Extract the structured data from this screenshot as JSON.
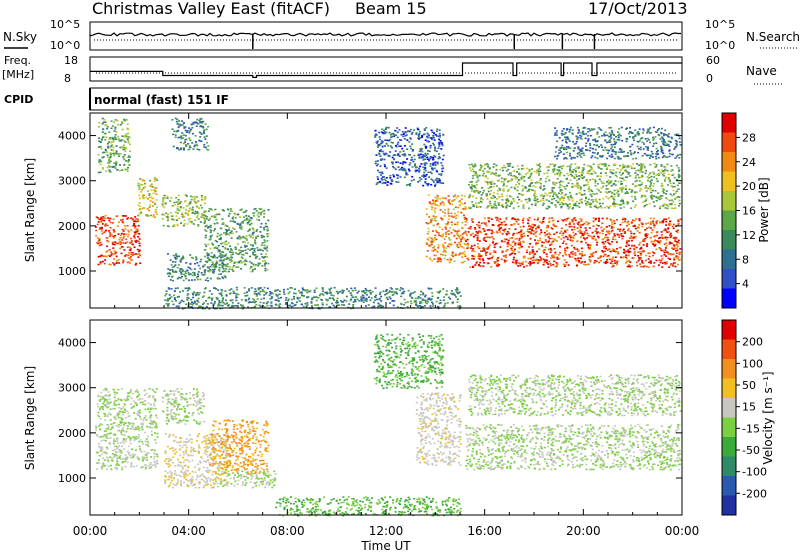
{
  "header": {
    "station": "Christmas Valley East (fitACF)",
    "beam": "Beam 15",
    "date": "17/Oct/2013"
  },
  "nsky": {
    "left_label": "N.Sky",
    "left_ticks": [
      "10^5",
      "10^0"
    ],
    "right_ticks": [
      "10^5",
      "10^0"
    ],
    "right_label": "N.Search"
  },
  "freq": {
    "left_label_1": "Freq.",
    "left_label_2": "[MHz]",
    "left_ticks": [
      "18",
      "8"
    ],
    "right_ticks": [
      "60",
      "0"
    ],
    "right_label": "Nave"
  },
  "cpid": {
    "label": "CPID",
    "mode": "normal (fast) 151 IF"
  },
  "power_panel": {
    "ylabel": "Slant Range [km]",
    "yticks": [
      "4000",
      "3000",
      "2000",
      "1000"
    ],
    "colorbar_label": "Power [dB]",
    "colorbar_ticks": [
      "28",
      "24",
      "20",
      "16",
      "12",
      "8",
      "4"
    ],
    "colors": [
      "#0000ff",
      "#3050c8",
      "#2f6f8f",
      "#3a8a5a",
      "#5aa84a",
      "#a8c83a",
      "#f0c020",
      "#f08a10",
      "#f04a10",
      "#e00000"
    ]
  },
  "velocity_panel": {
    "ylabel": "Slant Range [km]",
    "yticks": [
      "4000",
      "3000",
      "2000",
      "1000"
    ],
    "colorbar_label": "Velocity [m s⁻¹]",
    "colorbar_ticks": [
      "200",
      "100",
      "50",
      "15",
      "-15",
      "-50",
      "-100",
      "-200"
    ],
    "colors": [
      "#2030a0",
      "#2a5ab0",
      "#2f8a6a",
      "#3aaa3a",
      "#7ad040",
      "#c8c8c0",
      "#f0c020",
      "#f09020",
      "#f05010",
      "#e00000"
    ]
  },
  "x_axis": {
    "ticks": [
      "00:00",
      "04:00",
      "08:00",
      "12:00",
      "16:00",
      "20:00",
      "00:00"
    ],
    "label": "Time UT"
  },
  "chart_data": {
    "type": "heatmap",
    "title": "Christmas Valley East (fitACF)  Beam 15  17/Oct/2013",
    "xlabel": "Time UT",
    "ylabel": "Slant Range [km]",
    "xlim": [
      0,
      24
    ],
    "ylim": [
      180,
      4500
    ],
    "power_clim": [
      0,
      30
    ],
    "velocity_clim": [
      -250,
      250
    ],
    "freq_mhz_segments": [
      {
        "t0": 0.0,
        "t1": 2.95,
        "value": 12.0
      },
      {
        "t0": 2.95,
        "t1": 6.6,
        "value": 10.3
      },
      {
        "t0": 6.6,
        "t1": 6.75,
        "value": 9.5
      },
      {
        "t0": 6.75,
        "t1": 15.1,
        "value": 10.3
      },
      {
        "t0": 15.1,
        "t1": 17.15,
        "value": 15.5
      },
      {
        "t0": 17.15,
        "t1": 17.3,
        "value": 10.3
      },
      {
        "t0": 17.3,
        "t1": 19.1,
        "value": 15.5
      },
      {
        "t0": 19.1,
        "t1": 19.2,
        "value": 10.3
      },
      {
        "t0": 19.2,
        "t1": 20.35,
        "value": 15.5
      },
      {
        "t0": 20.35,
        "t1": 20.55,
        "value": 10.3
      },
      {
        "t0": 20.55,
        "t1": 24.0,
        "value": 15.5
      }
    ],
    "power_regions": [
      {
        "t0": 0.2,
        "t1": 2.0,
        "r0": 1150,
        "r1": 2250,
        "value": 26
      },
      {
        "t0": 1.9,
        "t1": 2.7,
        "r0": 2200,
        "r1": 3100,
        "value": 18
      },
      {
        "t0": 0.3,
        "t1": 1.6,
        "r0": 3200,
        "r1": 4400,
        "value": 13
      },
      {
        "t0": 2.9,
        "t1": 4.7,
        "r0": 2000,
        "r1": 2700,
        "value": 15
      },
      {
        "t0": 3.1,
        "t1": 5.5,
        "r0": 800,
        "r1": 1400,
        "value": 10
      },
      {
        "t0": 4.6,
        "t1": 7.2,
        "r0": 1000,
        "r1": 2400,
        "value": 12
      },
      {
        "t0": 3.3,
        "t1": 4.8,
        "r0": 3700,
        "r1": 4400,
        "value": 9
      },
      {
        "t0": 11.5,
        "t1": 14.3,
        "r0": 2900,
        "r1": 4200,
        "value": 6
      },
      {
        "t0": 13.6,
        "t1": 15.2,
        "r0": 1200,
        "r1": 2700,
        "value": 22
      },
      {
        "t0": 15.2,
        "t1": 23.9,
        "r0": 1100,
        "r1": 2200,
        "value": 26
      },
      {
        "t0": 15.3,
        "t1": 23.9,
        "r0": 2400,
        "r1": 3400,
        "value": 14
      },
      {
        "t0": 18.8,
        "t1": 23.9,
        "r0": 3500,
        "r1": 4200,
        "value": 8
      },
      {
        "t0": 3.0,
        "t1": 15.0,
        "r0": 180,
        "r1": 650,
        "value": 10
      }
    ],
    "velocity_regions": [
      {
        "t0": 0.2,
        "t1": 2.7,
        "r0": 1200,
        "r1": 3000,
        "value": 0
      },
      {
        "t0": 2.9,
        "t1": 4.6,
        "r0": 2200,
        "r1": 3000,
        "value": 0
      },
      {
        "t0": 3.0,
        "t1": 5.6,
        "r0": 800,
        "r1": 2000,
        "value": 40
      },
      {
        "t0": 4.8,
        "t1": 7.2,
        "r0": 1100,
        "r1": 2300,
        "value": 110
      },
      {
        "t0": 5.0,
        "t1": 7.5,
        "r0": 800,
        "r1": 1200,
        "value": 0
      },
      {
        "t0": 7.5,
        "t1": 15.0,
        "r0": 180,
        "r1": 600,
        "value": -50
      },
      {
        "t0": 13.2,
        "t1": 15.0,
        "r0": 1300,
        "r1": 2900,
        "value": 30
      },
      {
        "t0": 15.2,
        "t1": 23.9,
        "r0": 1200,
        "r1": 2200,
        "value": 0
      },
      {
        "t0": 15.3,
        "t1": 23.9,
        "r0": 2400,
        "r1": 3300,
        "value": 0
      },
      {
        "t0": 11.5,
        "t1": 14.3,
        "r0": 3000,
        "r1": 4200,
        "value": -60
      }
    ],
    "grid": false
  }
}
